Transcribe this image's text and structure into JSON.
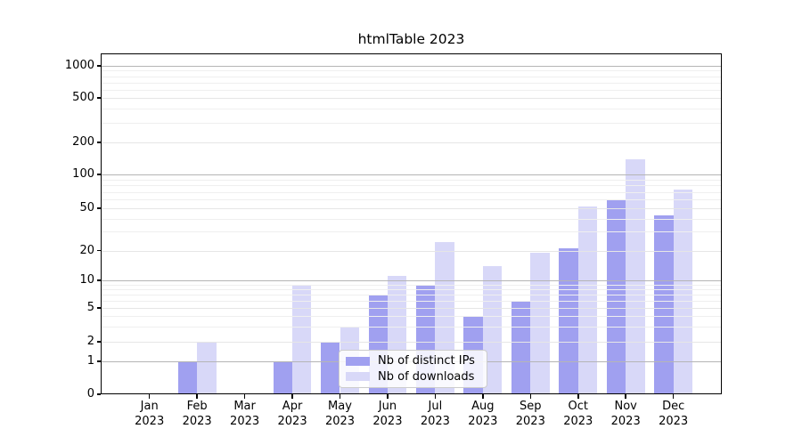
{
  "title": "htmlTable 2023",
  "legend": {
    "items": [
      {
        "label": "Nb of distinct IPs",
        "color": "#a0a0f0"
      },
      {
        "label": "Nb of downloads",
        "color": "#d8d8f8"
      }
    ]
  },
  "chart_data": {
    "type": "bar",
    "title": "htmlTable 2023",
    "categories": [
      "Jan 2023",
      "Feb 2023",
      "Mar 2023",
      "Apr 2023",
      "May 2023",
      "Jun 2023",
      "Jul 2023",
      "Aug 2023",
      "Sep 2023",
      "Oct 2023",
      "Nov 2023",
      "Dec 2023"
    ],
    "month_labels": [
      "Jan",
      "Feb",
      "Mar",
      "Apr",
      "May",
      "Jun",
      "Jul",
      "Aug",
      "Sep",
      "Oct",
      "Nov",
      "Dec"
    ],
    "year": "2023",
    "series": [
      {
        "name": "Nb of distinct IPs",
        "color": "#a0a0f0",
        "values": [
          0,
          1,
          0,
          1,
          2,
          7,
          9,
          4,
          6,
          21,
          60,
          43
        ]
      },
      {
        "name": "Nb of downloads",
        "color": "#d8d8f8",
        "values": [
          0,
          2,
          0,
          9,
          3,
          11,
          24,
          14,
          19,
          52,
          138,
          73
        ]
      }
    ],
    "yscale": "symlog",
    "yticks": [
      0,
      1,
      2,
      5,
      10,
      20,
      50,
      100,
      200,
      500,
      1000
    ],
    "ylim": [
      0,
      1400
    ],
    "grid": true,
    "grid_major_values": [
      1,
      10,
      100,
      1000
    ],
    "legend_position": "lower center"
  }
}
